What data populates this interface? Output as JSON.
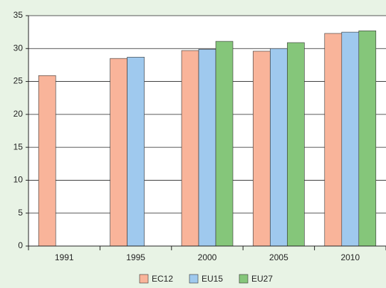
{
  "chart_data": {
    "type": "bar",
    "categories": [
      "1991",
      "1995",
      "2000",
      "2005",
      "2010"
    ],
    "series": [
      {
        "name": "EC12",
        "color": "#f9b49a",
        "values": [
          25.9,
          28.5,
          29.7,
          29.6,
          32.3
        ]
      },
      {
        "name": "EU15",
        "color": "#9fc9ee",
        "values": [
          null,
          28.7,
          29.9,
          30.0,
          32.5
        ]
      },
      {
        "name": "EU27",
        "color": "#85c67a",
        "values": [
          null,
          null,
          31.1,
          30.9,
          32.7
        ]
      }
    ],
    "ylim": [
      0,
      35
    ],
    "yticks": [
      0,
      5,
      10,
      15,
      20,
      25,
      30,
      35
    ],
    "grid": true
  }
}
